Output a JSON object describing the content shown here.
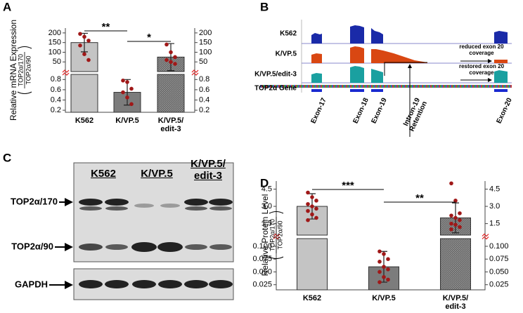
{
  "panel_labels": [
    "A",
    "B",
    "C",
    "D"
  ],
  "chart_data": [
    {
      "type": "bar",
      "y_label": "Relative mRNA Expression",
      "y_label_numerator": "TOP2α/170",
      "y_label_denominator": "TOP2α/90",
      "categories": [
        "K562",
        "K/VP.5",
        "K/VP.5/\nedit-3"
      ],
      "values": [
        150,
        0.55,
        75
      ],
      "errors": [
        48,
        0.25,
        70
      ],
      "points": [
        [
          195,
          180,
          160,
          135,
          90,
          60
        ],
        [
          0.78,
          0.75,
          0.62,
          0.55,
          0.45,
          0.32
        ],
        [
          140,
          100,
          75,
          60,
          50,
          40
        ]
      ],
      "colors": [
        "#c4c4c4",
        "#7c7c7c",
        "#6c6c6c"
      ],
      "hatched": [
        false,
        false,
        true
      ],
      "point_color": "#a01818",
      "y_segments": [
        {
          "ylim": [
            0.16,
            0.9
          ],
          "yticks": [
            0.2,
            0.4,
            0.6,
            0.8
          ]
        },
        {
          "ylim": [
            0,
            225
          ],
          "yticks": [
            50,
            100,
            150,
            200
          ]
        }
      ],
      "axis_break_color": "#e02020",
      "significance": [
        "**",
        "*"
      ]
    },
    {
      "type": "bar",
      "y_label": "Relative Protein Level",
      "y_label_numerator": "TOP2α/170",
      "y_label_denominator": "TOP2α/90",
      "categories": [
        "K562",
        "K/VP.5",
        "K/VP.5/\nedit-3"
      ],
      "values": [
        3.0,
        0.06,
        2.0
      ],
      "errors": [
        1.1,
        0.03,
        1.3
      ],
      "points": [
        [
          4.2,
          3.8,
          3.5,
          3.2,
          3.0,
          2.8,
          2.6,
          2.3,
          2.0,
          1.8
        ],
        [
          0.09,
          0.085,
          0.075,
          0.07,
          0.06,
          0.055,
          0.05,
          0.04,
          0.035,
          0.03
        ],
        [
          5.0,
          3.5,
          2.4,
          2.2,
          2.0,
          1.8,
          1.5,
          1.4,
          1.2,
          1.0
        ]
      ],
      "colors": [
        "#c4c4c4",
        "#7c7c7c",
        "#6c6c6c"
      ],
      "hatched": [
        false,
        false,
        true
      ],
      "point_color": "#a01818",
      "y_segments": [
        {
          "ylim": [
            0.015,
            0.115
          ],
          "yticks": [
            0.025,
            {
              "value": 0.05,
              "label": "0.050"
            },
            0.075,
            {
              "value": 0.1,
              "label": "0.100"
            }
          ]
        },
        {
          "ylim": [
            0.5,
            5.2
          ],
          "yticks": [
            1.5,
            {
              "value": 3,
              "label": "3.0"
            },
            4.5
          ]
        }
      ],
      "axis_break_color": "#e02020",
      "significance": [
        "***",
        "**"
      ]
    }
  ],
  "panel_b": {
    "tracks": [
      "K562",
      "K/VP.5",
      "K/VP.5/edit-3",
      "TOP2α Gene"
    ],
    "exons": [
      "Exon-17",
      "Exon-18",
      "Exon-19",
      "Intron-19\nRetention",
      "Exon-20"
    ],
    "annotations": [
      "reduced exon 20\ncoverage",
      "restored exon 20\ncoverage"
    ]
  },
  "panel_c": {
    "lanes": [
      "K562",
      "K/VP.5",
      "K/VP.5/\nedit-3"
    ],
    "bands": [
      "TOP2α/170",
      "TOP2α/90",
      "GAPDH"
    ]
  }
}
